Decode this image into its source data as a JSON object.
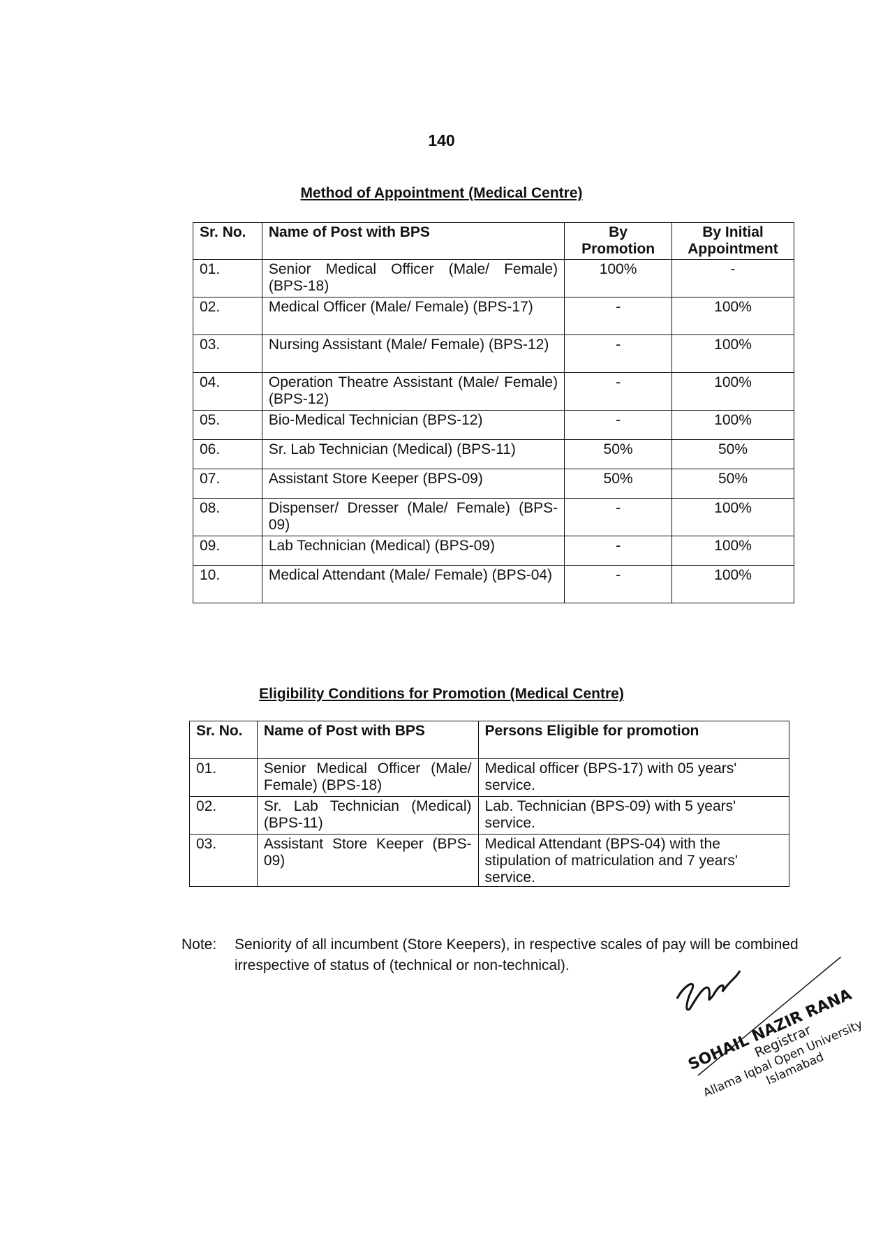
{
  "page_number": "140",
  "appointment": {
    "title": "Method of Appointment (Medical Centre)",
    "headers": [
      "Sr. No.",
      "Name of Post with BPS",
      "By Promotion",
      "By Initial Appointment"
    ],
    "rows": [
      [
        "01.",
        "Senior Medical Officer (Male/ Female) (BPS-18)",
        "100%",
        "-"
      ],
      [
        "02.",
        "Medical Officer (Male/ Female) (BPS-17)",
        "-",
        "100%"
      ],
      [
        "03.",
        "Nursing Assistant (Male/ Female) (BPS-12)",
        "-",
        "100%"
      ],
      [
        "04.",
        "Operation Theatre Assistant (Male/ Female) (BPS-12)",
        "-",
        "100%"
      ],
      [
        "05.",
        "Bio-Medical Technician (BPS-12)",
        "-",
        "100%"
      ],
      [
        "06.",
        "Sr. Lab Technician (Medical) (BPS-11)",
        "50%",
        "50%"
      ],
      [
        "07.",
        "Assistant Store Keeper (BPS-09)",
        "50%",
        "50%"
      ],
      [
        "08.",
        "Dispenser/ Dresser (Male/ Female) (BPS-09)",
        "-",
        "100%"
      ],
      [
        "09.",
        "Lab Technician (Medical) (BPS-09)",
        "-",
        "100%"
      ],
      [
        "10.",
        "Medical Attendant (Male/ Female) (BPS-04)",
        "-",
        "100%"
      ]
    ]
  },
  "eligibility": {
    "title": "Eligibility Conditions for Promotion (Medical Centre)",
    "headers": [
      "Sr. No.",
      "Name of Post with BPS",
      "Persons Eligible for promotion"
    ],
    "rows": [
      [
        "01.",
        "Senior Medical Officer (Male/ Female) (BPS-18)",
        "Medical officer (BPS-17) with 05 years' service."
      ],
      [
        "02.",
        "Sr. Lab Technician (Medical) (BPS-11)",
        "Lab. Technician (BPS-09) with 5 years' service."
      ],
      [
        "03.",
        "Assistant Store Keeper (BPS-09)",
        "Medical Attendant (BPS-04) with the stipulation of matriculation and 7 years' service."
      ]
    ]
  },
  "note": {
    "label": "Note:",
    "text": "Seniority of all incumbent (Store Keepers), in respective scales of pay will be combined irrespective of status of (technical or non-technical)."
  },
  "stamp": {
    "name": "SOHAIL NAZIR RANA",
    "designation": "Registrar",
    "organization": "Allama Iqbal Open University",
    "city": "Islamabad"
  }
}
